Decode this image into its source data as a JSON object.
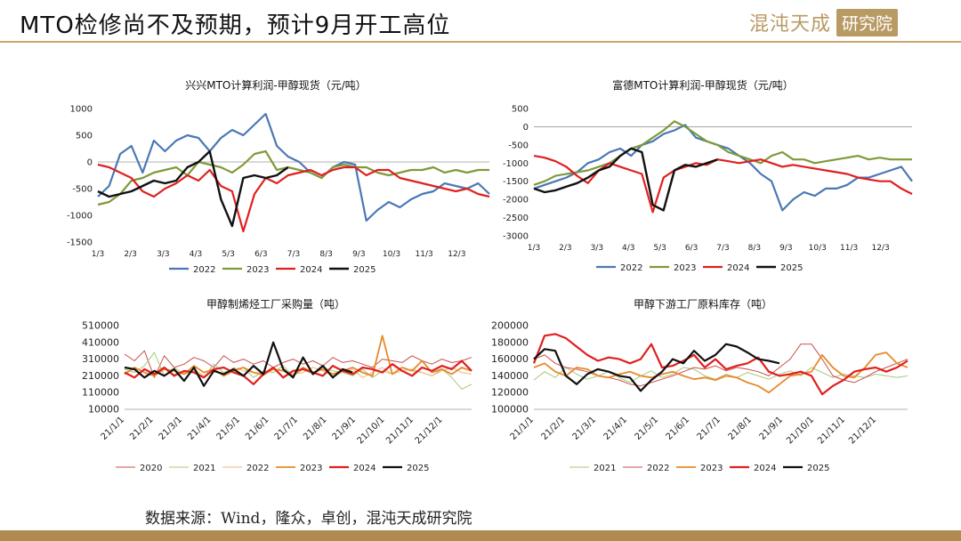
{
  "page": {
    "title": "MTO检修尚不及预期，预计9月开工高位",
    "brand": {
      "name": "混沌天成",
      "box": "研究院"
    },
    "source": "数据来源：Wind，隆众，卓创，混沌天成研究院"
  },
  "chart_data": [
    {
      "id": "xingxing",
      "type": "line",
      "title": "兴兴MTO计算利润-甲醇现货（元/吨）",
      "x_ticks": [
        "1/3",
        "2/3",
        "3/3",
        "4/3",
        "5/3",
        "6/3",
        "7/3",
        "8/3",
        "9/3",
        "10/3",
        "11/3",
        "12/3"
      ],
      "y_ticks": [
        "1000",
        "500",
        "0",
        "-500",
        "-1000",
        "-1500"
      ],
      "ylim": [
        -1500,
        1000
      ],
      "series": [
        {
          "name": "2022",
          "color": "#4a78b4",
          "width": 2.2,
          "values": [
            -650,
            -450,
            150,
            300,
            -200,
            400,
            200,
            400,
            500,
            450,
            200,
            450,
            600,
            500,
            700,
            900,
            300,
            100,
            0,
            -200,
            -300,
            -100,
            0,
            -50,
            -1100,
            -900,
            -750,
            -850,
            -700,
            -600,
            -550,
            -400,
            -450,
            -500,
            -400,
            -600
          ]
        },
        {
          "name": "2023",
          "color": "#7f9a3a",
          "width": 2.2,
          "values": [
            -800,
            -750,
            -600,
            -350,
            -300,
            -200,
            -150,
            -100,
            -250,
            0,
            -50,
            -100,
            -200,
            -50,
            150,
            200,
            -150,
            -100,
            -150,
            -200,
            -300,
            -100,
            -50,
            -100,
            -100,
            -200,
            -250,
            -200,
            -150,
            -150,
            -100,
            -200,
            -150,
            -200,
            -150,
            -150
          ]
        },
        {
          "name": "2024",
          "color": "#e02020",
          "width": 2.2,
          "values": [
            -50,
            -100,
            -200,
            -300,
            -550,
            -650,
            -500,
            -400,
            -250,
            -350,
            -150,
            -450,
            -550,
            -1300,
            -600,
            -300,
            -400,
            -250,
            -200,
            -150,
            -250,
            -150,
            -100,
            -100,
            -250,
            -150,
            -150,
            -300,
            -350,
            -400,
            -450,
            -500,
            -550,
            -500,
            -600,
            -650
          ]
        },
        {
          "name": "2025",
          "color": "#111111",
          "width": 2.4,
          "values": [
            -550,
            -650,
            -600,
            -550,
            -450,
            -350,
            -400,
            -350,
            -100,
            0,
            200,
            -700,
            -1200,
            -300,
            -250,
            -300,
            -250,
            -100
          ]
        }
      ]
    },
    {
      "id": "fude",
      "type": "line",
      "title": "富德MTO计算利润-甲醇现货（元/吨）",
      "x_ticks": [
        "1/3",
        "2/3",
        "3/3",
        "4/3",
        "5/3",
        "6/3",
        "7/3",
        "8/3",
        "9/3",
        "10/3",
        "11/3",
        "12/3"
      ],
      "y_ticks": [
        "500",
        "0",
        "-500",
        "-1000",
        "-1500",
        "-2000",
        "-2500",
        "-3000"
      ],
      "ylim": [
        -3000,
        500
      ],
      "series": [
        {
          "name": "2022",
          "color": "#4a78b4",
          "width": 2.2,
          "values": [
            -1700,
            -1600,
            -1500,
            -1400,
            -1250,
            -1000,
            -900,
            -700,
            -600,
            -800,
            -500,
            -400,
            -200,
            -100,
            50,
            -300,
            -400,
            -500,
            -600,
            -800,
            -1000,
            -1300,
            -1500,
            -2300,
            -2000,
            -1800,
            -1900,
            -1700,
            -1700,
            -1600,
            -1400,
            -1400,
            -1300,
            -1200,
            -1100,
            -1500
          ]
        },
        {
          "name": "2023",
          "color": "#7f9a3a",
          "width": 2.2,
          "values": [
            -1600,
            -1500,
            -1350,
            -1300,
            -1250,
            -1200,
            -1100,
            -1000,
            -800,
            -600,
            -500,
            -300,
            -100,
            150,
            0,
            -200,
            -400,
            -500,
            -700,
            -800,
            -900,
            -1000,
            -800,
            -700,
            -900,
            -900,
            -1000,
            -950,
            -900,
            -850,
            -800,
            -900,
            -850,
            -900,
            -900,
            -900
          ]
        },
        {
          "name": "2024",
          "color": "#e02020",
          "width": 2.2,
          "values": [
            -800,
            -850,
            -950,
            -1100,
            -1350,
            -1550,
            -1200,
            -1000,
            -1100,
            -1200,
            -1300,
            -2350,
            -1400,
            -1200,
            -1100,
            -1000,
            -1050,
            -900,
            -950,
            -1000,
            -950,
            -900,
            -1000,
            -1100,
            -1050,
            -1100,
            -1150,
            -1200,
            -1250,
            -1300,
            -1400,
            -1450,
            -1500,
            -1500,
            -1700,
            -1850
          ]
        },
        {
          "name": "2025",
          "color": "#111111",
          "width": 2.4,
          "values": [
            -1700,
            -1800,
            -1750,
            -1650,
            -1550,
            -1400,
            -1200,
            -1100,
            -800,
            -600,
            -700,
            -2150,
            -2300,
            -1200,
            -1050,
            -1100,
            -1000,
            -900
          ]
        }
      ]
    },
    {
      "id": "purchase",
      "type": "line",
      "title": "甲醇制烯烃工厂采购量（吨）",
      "x_ticks": [
        "21/1/1",
        "21/2/1",
        "21/3/1",
        "21/4/1",
        "21/5/1",
        "21/6/1",
        "21/7/1",
        "21/8/1",
        "21/9/1",
        "21/10/1",
        "21/11/1",
        "21/12/1"
      ],
      "y_ticks": [
        "510000",
        "410000",
        "310000",
        "210000",
        "110000",
        "10000"
      ],
      "ylim": [
        10000,
        510000
      ],
      "series": [
        {
          "name": "2020",
          "color": "#c9504a",
          "width": 1.0,
          "values": [
            340000,
            300000,
            360000,
            200000,
            330000,
            260000,
            280000,
            320000,
            300000,
            260000,
            330000,
            290000,
            310000,
            280000,
            300000,
            260000,
            290000,
            310000,
            280000,
            300000,
            270000,
            320000,
            290000,
            300000,
            280000,
            260000,
            310000,
            300000,
            290000,
            330000,
            300000,
            280000,
            310000,
            290000,
            300000,
            320000
          ]
        },
        {
          "name": "2021",
          "color": "#a5c87a",
          "width": 1.0,
          "values": [
            250000,
            230000,
            270000,
            350000,
            210000,
            260000,
            220000,
            240000,
            200000,
            280000,
            230000,
            250000,
            260000,
            200000,
            240000,
            230000,
            270000,
            210000,
            250000,
            220000,
            260000,
            240000,
            230000,
            210000,
            250000,
            200000,
            240000,
            220000,
            260000,
            240000,
            230000,
            210000,
            250000,
            200000,
            130000,
            160000
          ]
        },
        {
          "name": "2022",
          "color": "#f3b77a",
          "width": 1.0,
          "values": [
            230000,
            250000,
            200000,
            240000,
            260000,
            220000,
            230000,
            250000,
            210000,
            240000,
            220000,
            260000,
            240000,
            230000,
            210000,
            250000,
            240000,
            220000,
            230000,
            260000,
            240000,
            210000,
            230000,
            250000,
            200000,
            230000,
            260000,
            220000,
            240000,
            250000,
            230000,
            210000,
            240000,
            260000,
            230000,
            220000
          ]
        },
        {
          "name": "2023",
          "color": "#e8892a",
          "width": 1.8,
          "values": [
            220000,
            260000,
            230000,
            210000,
            250000,
            240000,
            220000,
            270000,
            230000,
            250000,
            210000,
            240000,
            260000,
            230000,
            220000,
            250000,
            240000,
            210000,
            260000,
            230000,
            250000,
            220000,
            240000,
            260000,
            230000,
            210000,
            450000,
            220000,
            260000,
            240000,
            300000,
            230000,
            250000,
            220000,
            260000,
            240000
          ]
        },
        {
          "name": "2024",
          "color": "#e02020",
          "width": 2.2,
          "values": [
            230000,
            200000,
            250000,
            220000,
            260000,
            210000,
            240000,
            230000,
            200000,
            250000,
            260000,
            230000,
            210000,
            160000,
            220000,
            260000,
            200000,
            240000,
            250000,
            230000,
            210000,
            270000,
            240000,
            220000,
            260000,
            250000,
            230000,
            280000,
            240000,
            210000,
            260000,
            240000,
            270000,
            250000,
            300000,
            240000
          ]
        },
        {
          "name": "2025",
          "color": "#111111",
          "width": 2.2,
          "values": [
            260000,
            250000,
            200000,
            240000,
            210000,
            250000,
            180000,
            260000,
            150000,
            240000,
            220000,
            250000,
            210000,
            270000,
            220000,
            410000,
            250000,
            200000,
            320000,
            220000,
            270000,
            200000,
            250000,
            230000
          ]
        }
      ]
    },
    {
      "id": "inventory",
      "type": "line",
      "title": "甲醇下游工厂原料库存（吨）",
      "x_ticks": [
        "21/1/1",
        "21/2/1",
        "21/3/1",
        "21/4/1",
        "21/5/1",
        "21/6/1",
        "21/7/1",
        "21/8/1",
        "21/9/1",
        "21/10/1",
        "21/11/1",
        "21/12/1"
      ],
      "y_ticks": [
        "200000",
        "180000",
        "160000",
        "140000",
        "120000",
        "100000"
      ],
      "ylim": [
        100000,
        200000
      ],
      "series": [
        {
          "name": "2021",
          "color": "#a5c87a",
          "width": 1.0,
          "values": [
            135000,
            145000,
            138000,
            150000,
            142000,
            136000,
            140000,
            145000,
            138000,
            132000,
            140000,
            146000,
            138000,
            142000,
            150000,
            148000,
            140000,
            136000,
            142000,
            138000,
            144000,
            140000,
            136000,
            142000,
            146000,
            140000,
            150000,
            144000,
            138000,
            142000,
            140000,
            138000,
            142000,
            140000,
            138000,
            140000
          ]
        },
        {
          "name": "2022",
          "color": "#c9504a",
          "width": 1.0,
          "values": [
            160000,
            165000,
            155000,
            150000,
            148000,
            145000,
            140000,
            138000,
            135000,
            130000,
            128000,
            132000,
            136000,
            140000,
            145000,
            150000,
            148000,
            152000,
            146000,
            150000,
            148000,
            145000,
            140000,
            150000,
            160000,
            178000,
            178000,
            160000,
            140000,
            135000,
            132000,
            138000,
            145000,
            150000,
            155000,
            160000
          ]
        },
        {
          "name": "2023",
          "color": "#e8892a",
          "width": 1.8,
          "values": [
            150000,
            155000,
            145000,
            140000,
            150000,
            148000,
            140000,
            138000,
            142000,
            145000,
            140000,
            138000,
            142000,
            145000,
            140000,
            136000,
            138000,
            135000,
            140000,
            138000,
            132000,
            128000,
            120000,
            130000,
            140000,
            142000,
            145000,
            165000,
            150000,
            140000,
            138000,
            150000,
            165000,
            168000,
            155000,
            150000
          ]
        },
        {
          "name": "2024",
          "color": "#e02020",
          "width": 2.2,
          "values": [
            155000,
            188000,
            190000,
            185000,
            175000,
            165000,
            158000,
            162000,
            160000,
            155000,
            160000,
            178000,
            150000,
            152000,
            158000,
            165000,
            150000,
            160000,
            148000,
            152000,
            155000,
            162000,
            145000,
            140000,
            142000,
            145000,
            140000,
            118000,
            128000,
            135000,
            145000,
            148000,
            150000,
            145000,
            150000,
            158000
          ]
        },
        {
          "name": "2025",
          "color": "#111111",
          "width": 2.2,
          "values": [
            160000,
            172000,
            170000,
            140000,
            130000,
            142000,
            148000,
            145000,
            140000,
            138000,
            122000,
            135000,
            145000,
            160000,
            155000,
            170000,
            158000,
            165000,
            178000,
            175000,
            168000,
            160000,
            158000,
            155000
          ]
        }
      ]
    }
  ]
}
